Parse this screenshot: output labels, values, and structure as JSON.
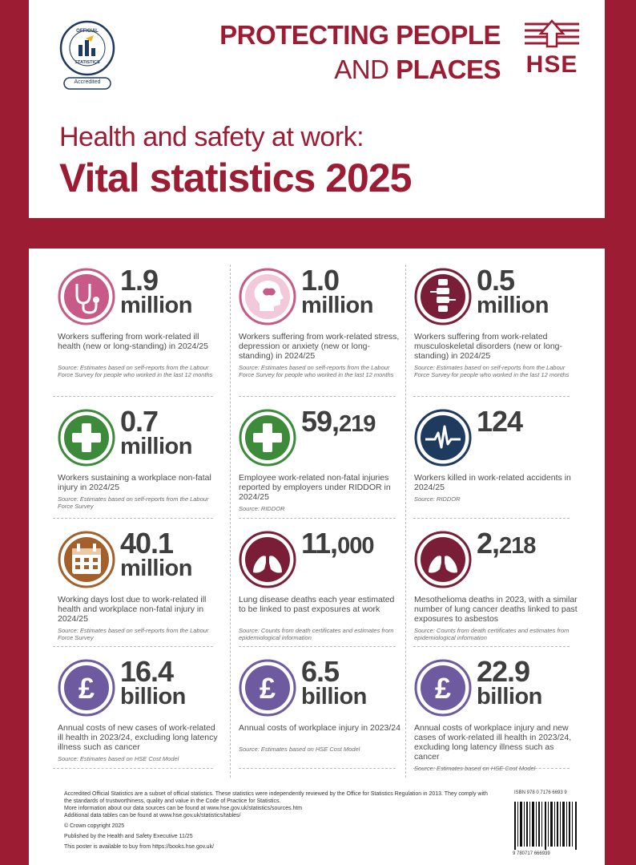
{
  "badge": {
    "line1": "OFFICIAL",
    "line2": "STATISTICS",
    "label": "Accredited"
  },
  "tagline": {
    "line1": "PROTECTING PEOPLE",
    "line2_light": "AND ",
    "line2_bold": "PLACES"
  },
  "logo": {
    "text": "HSE"
  },
  "title": {
    "pre": "Health and safety at work:",
    "main": "Vital statistics 2025"
  },
  "colors": {
    "brand": "#9c1c33",
    "pink": "#c75a86",
    "maroon": "#7a1e38",
    "green": "#3c8a3a",
    "navy": "#1f3a5f",
    "brown": "#a4602a",
    "purple": "#6e5a9e"
  },
  "stats": [
    {
      "icon": "stethoscope-icon",
      "num": "1.9",
      "unit": "million",
      "desc": "Workers suffering from work-related ill health (new or long-standing) in 2024/25",
      "source": "Source: Estimates based on self-reports from the Labour Force Survey for people who worked in the last 12 months"
    },
    {
      "icon": "head-brain-icon",
      "num": "1.0",
      "unit": "million",
      "desc": "Workers suffering from work-related stress, depression or anxiety (new or long-standing) in 2024/25",
      "source": "Source: Estimates based on self-reports from the Labour Force Survey for people who worked in the last 12 months"
    },
    {
      "icon": "spine-icon",
      "num": "0.5",
      "unit": "million",
      "desc": "Workers suffering from work-related musculoskeletal disorders (new or long-standing) in 2024/25",
      "source": "Source: Estimates based on self-reports from the Labour Force Survey for people who worked in the last 12 months"
    },
    {
      "icon": "first-aid-cross-icon",
      "num": "0.7",
      "unit": "million",
      "desc": "Workers sustaining a workplace non-fatal injury in 2024/25",
      "source": "Source: Estimates based on self-reports from the Labour Force Survey"
    },
    {
      "icon": "first-aid-cross-icon",
      "num_main": "59,",
      "num_small": "219",
      "unit": "",
      "desc": "Employee work-related non-fatal injuries reported by employers under RIDDOR in 2024/25",
      "source": "Source: RIDDOR"
    },
    {
      "icon": "heartbeat-monitor-icon",
      "num": "124",
      "unit": "",
      "desc": "Workers killed in work-related accidents in 2024/25",
      "source": "Source: RIDDOR"
    },
    {
      "icon": "calendar-icon",
      "num": "40.1",
      "unit": "million",
      "desc": "Working days lost due to work-related ill health and workplace non-fatal injury in 2024/25",
      "source": "Source: Estimates based on self-reports from the Labour Force Survey"
    },
    {
      "icon": "lungs-icon",
      "num_main": "11,",
      "num_small": "000",
      "unit": "",
      "desc": "Lung disease deaths each year estimated to be linked to past exposures at work",
      "source": "Source: Counts from death certificates and estimates from epidemiological information"
    },
    {
      "icon": "lungs-icon",
      "num_main": "2,",
      "num_small": "218",
      "unit": "",
      "desc": "Mesothelioma deaths in 2023, with a similar number of lung cancer deaths linked to past exposures to asbestos",
      "source": "Source: Counts from death certificates and estimates from epidemiological information"
    },
    {
      "icon": "pound-icon",
      "num": "16.4",
      "unit": "billion",
      "desc": "Annual costs of new cases of work-related ill health in 2023/24, excluding long latency illness such as cancer",
      "source": "Source: Estimates based on HSE Cost Model"
    },
    {
      "icon": "pound-icon",
      "num": "6.5",
      "unit": "billion",
      "desc": "Annual costs of workplace injury in 2023/24",
      "source": "Source: Estimates based on HSE Cost Model"
    },
    {
      "icon": "pound-icon",
      "num": "22.9",
      "unit": "billion",
      "desc": "Annual costs of workplace injury and new cases of work-related ill health in 2023/24, excluding long latency illness such as cancer",
      "source": "Source: Estimates based on HSE Cost Model"
    }
  ],
  "footer": {
    "p1": "Accredited Official Statistics are a subset of official statistics. These statistics were independently reviewed by the Office for Statistics Regulation in 2013. They comply with the standards of trustworthiness, quality and value in the Code of Practice for Statistics.",
    "p2": "More information about our data sources can be found at www.hse.gov.uk/statistics/sources.htm",
    "p3": "Additional data tables can be found at www.hse.gov.uk/statistics/tables/",
    "p4": "© Crown copyright 2025",
    "p5": "Published by the Health and Safety Executive  11/25",
    "p6": "This poster is available to buy from https://books.hse.gov.uk/",
    "isbn": "ISBN 978 0 7176 6693 9",
    "barcode_number": "9 780717 666939"
  }
}
